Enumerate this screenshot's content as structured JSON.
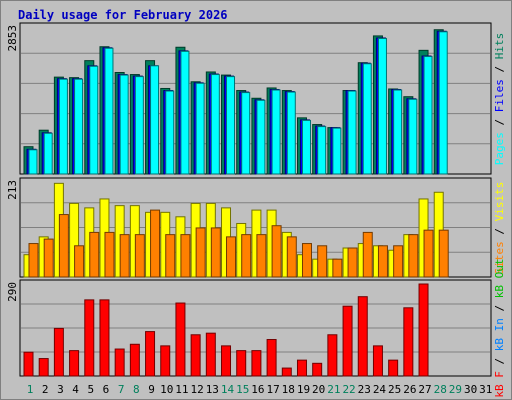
{
  "title": "Daily usage for February 2026",
  "colors": {
    "hits": "#00805c",
    "files": "#0000ff",
    "pages": "#00ffff",
    "visits": "#ffff00",
    "sites": "#ff8000",
    "kbin": "#0080ff",
    "kbout": "#00c000",
    "kbf": "#ff0000",
    "weekday_tick": "#000000",
    "weekend_tick": "#00805c"
  },
  "right_labels": {
    "top": [
      {
        "text": "Pages",
        "color": "pages"
      },
      {
        "text": " / ",
        "color": "separator"
      },
      {
        "text": "Files",
        "color": "files"
      },
      {
        "text": " / ",
        "color": "separator"
      },
      {
        "text": "Hits",
        "color": "hits"
      }
    ],
    "middle": [
      {
        "text": "Sites",
        "color": "sites"
      },
      {
        "text": " / ",
        "color": "separator"
      },
      {
        "text": "Visits",
        "color": "visits"
      }
    ],
    "bottom": [
      {
        "text": "kB F",
        "color": "kbf"
      },
      {
        "text": " / ",
        "color": "separator"
      },
      {
        "text": "kB In",
        "color": "kbin"
      },
      {
        "text": " / ",
        "color": "separator"
      },
      {
        "text": "kB Out",
        "color": "kbout"
      }
    ]
  },
  "chart_data": {
    "type": "bar",
    "categories": [
      "1",
      "2",
      "3",
      "4",
      "5",
      "6",
      "7",
      "8",
      "9",
      "10",
      "11",
      "12",
      "13",
      "14",
      "15",
      "16",
      "17",
      "18",
      "19",
      "20",
      "21",
      "22",
      "23",
      "24",
      "25",
      "26",
      "27",
      "28",
      "29",
      "30",
      "31"
    ],
    "weekend_days": [
      "1",
      "7",
      "8",
      "14",
      "15",
      "21",
      "22",
      "28",
      "29"
    ],
    "panels": [
      {
        "id": "top",
        "ymax_label": "2853",
        "ylim": [
          0,
          2853
        ],
        "series": [
          {
            "name": "Hits",
            "color_key": "hits",
            "values": [
              530,
              850,
              1880,
              1870,
              2200,
              2470,
              1970,
              1930,
              2200,
              1660,
              2460,
              1790,
              1980,
              1920,
              1620,
              1470,
              1670,
              1620,
              1090,
              960,
              900,
              1620,
              2160,
              2680,
              1650,
              1500,
              2400,
              2800,
              null,
              null,
              null
            ]
          },
          {
            "name": "Files",
            "color_key": "files",
            "values": [
              480,
              800,
              1850,
              1850,
              2100,
              2450,
              1930,
              1900,
              2100,
              1620,
              2390,
              1770,
              1940,
              1900,
              1590,
              1440,
              1640,
              1600,
              1050,
              930,
              900,
              1620,
              2150,
              2640,
              1640,
              1460,
              2290,
              2770,
              null,
              null,
              null
            ]
          },
          {
            "name": "Pages",
            "color_key": "pages",
            "values": [
              470,
              790,
              1840,
              1840,
              2090,
              2440,
              1920,
              1890,
              2100,
              1610,
              2380,
              1760,
              1930,
              1890,
              1580,
              1430,
              1630,
              1590,
              1040,
              920,
              890,
              1610,
              2140,
              2630,
              1630,
              1450,
              2280,
              2760,
              null,
              null,
              null
            ]
          }
        ]
      },
      {
        "id": "middle",
        "ymax_label": "213",
        "ylim": [
          0,
          213
        ],
        "series": [
          {
            "name": "Visits",
            "color_key": "visits",
            "values": [
              50,
              90,
              210,
              165,
              155,
              175,
              160,
              160,
              145,
              145,
              135,
              165,
              165,
              155,
              120,
              150,
              150,
              100,
              50,
              40,
              40,
              65,
              75,
              70,
              60,
              95,
              175,
              190,
              null,
              null,
              null
            ]
          },
          {
            "name": "Sites",
            "color_key": "sites",
            "values": [
              75,
              85,
              140,
              70,
              100,
              100,
              95,
              95,
              150,
              95,
              95,
              110,
              110,
              90,
              95,
              95,
              115,
              90,
              75,
              70,
              40,
              65,
              100,
              70,
              70,
              95,
              105,
              105,
              null,
              null,
              null
            ]
          }
        ]
      },
      {
        "id": "bottom",
        "ymax_label": "290",
        "ylim": [
          0,
          290
        ],
        "series": [
          {
            "name": "kB F",
            "color_key": "kbf",
            "values": [
              75,
              55,
              150,
              80,
              240,
              240,
              85,
              100,
              140,
              95,
              230,
              130,
              135,
              95,
              80,
              80,
              115,
              25,
              50,
              40,
              130,
              220,
              250,
              95,
              50,
              215,
              290,
              null,
              null,
              null,
              null
            ]
          }
        ]
      }
    ]
  }
}
